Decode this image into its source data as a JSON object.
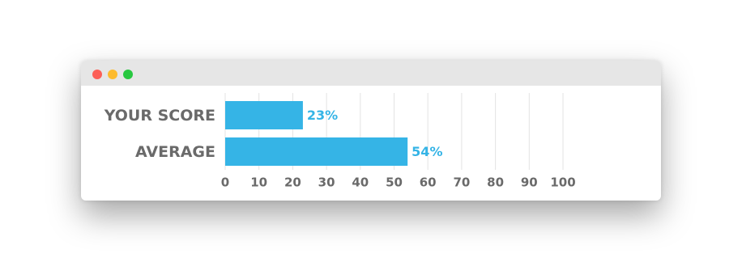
{
  "chart_data": {
    "type": "bar",
    "orientation": "horizontal",
    "categories": [
      "YOUR SCORE",
      "AVERAGE"
    ],
    "values": [
      23,
      54
    ],
    "value_labels": [
      "23%",
      "54%"
    ],
    "color": "#35b4e6",
    "xlim": [
      0,
      100
    ],
    "xticks": [
      0,
      10,
      20,
      30,
      40,
      50,
      60,
      70,
      80,
      90,
      100
    ],
    "grid": true
  }
}
